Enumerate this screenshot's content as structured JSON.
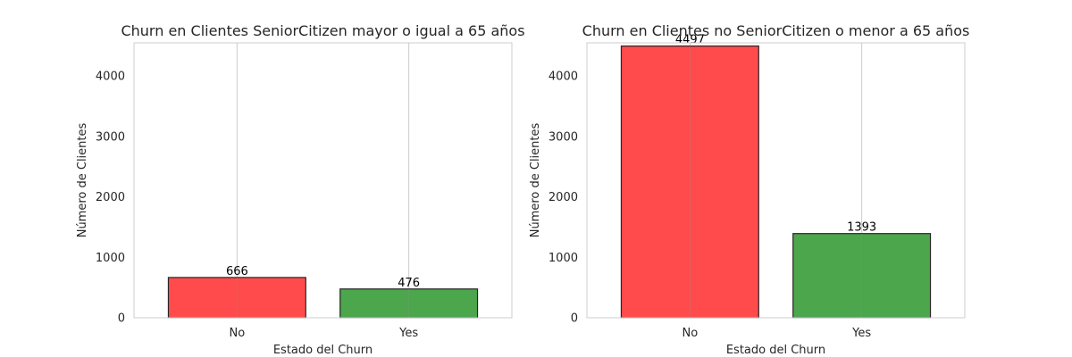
{
  "chart_data": [
    {
      "type": "bar",
      "title": "Churn en Clientes SeniorCitizen mayor o igual a 65 años",
      "xlabel": "Estado del Churn",
      "ylabel": "Número de Clientes",
      "categories": [
        "No",
        "Yes"
      ],
      "values": [
        666,
        476
      ],
      "data_labels": [
        "666",
        "476"
      ],
      "bar_colors": [
        "#ff4b4b",
        "#4ca64c"
      ],
      "ylim": [
        0,
        4550
      ],
      "yticks": [
        0,
        1000,
        2000,
        3000,
        4000
      ],
      "ytick_labels": [
        "0",
        "1000",
        "2000",
        "3000",
        "4000"
      ],
      "grid": true
    },
    {
      "type": "bar",
      "title": "Churn en Clientes no SeniorCitizen o menor a 65 años",
      "xlabel": "Estado del Churn",
      "ylabel": "Número de Clientes",
      "categories": [
        "No",
        "Yes"
      ],
      "values": [
        4497,
        1393
      ],
      "data_labels": [
        "4497",
        "1393"
      ],
      "bar_colors": [
        "#ff4b4b",
        "#4ca64c"
      ],
      "ylim": [
        0,
        4550
      ],
      "yticks": [
        0,
        1000,
        2000,
        3000,
        4000
      ],
      "ytick_labels": [
        "0",
        "1000",
        "2000",
        "3000",
        "4000"
      ],
      "grid": true
    }
  ]
}
